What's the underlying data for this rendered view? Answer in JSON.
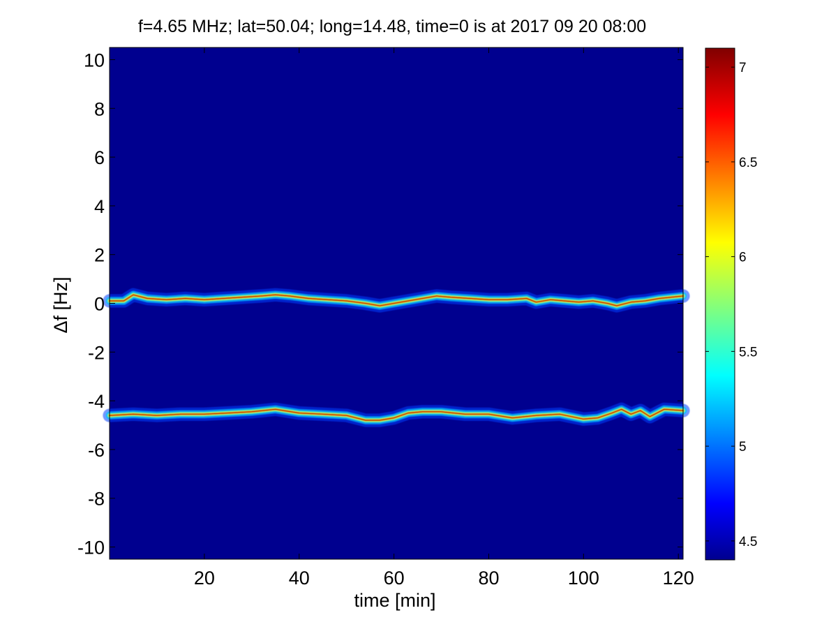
{
  "chart_data": {
    "type": "heatmap",
    "title": "f=4.65 MHz;  lat=50.04; long=14.48, time=0 is at 2017 09 20 08:00",
    "xlabel": "time [min]",
    "ylabel": "Δf [Hz]",
    "xlim": [
      0,
      121
    ],
    "ylim": [
      -10.5,
      10.5
    ],
    "x_ticks": [
      20,
      40,
      60,
      80,
      100,
      120
    ],
    "y_ticks": [
      10,
      8,
      6,
      4,
      2,
      0,
      -2,
      -4,
      -6,
      -8,
      -10
    ],
    "colorbar": {
      "range": [
        4.4,
        7.1
      ],
      "ticks": [
        7,
        6.5,
        6,
        5.5,
        5,
        4.5
      ],
      "colormap": "jet"
    },
    "background_value": 4.4,
    "series": [
      {
        "time": [
          0,
          3,
          5,
          8,
          12,
          16,
          20,
          24,
          28,
          32,
          35,
          38,
          42,
          46,
          50,
          54,
          57,
          60,
          63,
          66,
          69,
          72,
          76,
          80,
          84,
          88,
          90,
          93,
          96,
          99,
          102,
          105,
          107,
          110,
          113,
          116,
          121
        ],
        "delta_f": [
          0.1,
          0.1,
          0.35,
          0.2,
          0.15,
          0.2,
          0.15,
          0.2,
          0.25,
          0.3,
          0.35,
          0.3,
          0.2,
          0.15,
          0.1,
          0.0,
          -0.1,
          0.0,
          0.1,
          0.2,
          0.3,
          0.25,
          0.2,
          0.15,
          0.15,
          0.2,
          0.05,
          0.15,
          0.1,
          0.05,
          0.1,
          0.0,
          -0.1,
          0.05,
          0.1,
          0.2,
          0.3
        ],
        "peak_value": 7.1
      },
      {
        "time": [
          0,
          5,
          10,
          15,
          20,
          25,
          30,
          35,
          40,
          45,
          50,
          54,
          57,
          60,
          63,
          66,
          70,
          75,
          80,
          85,
          90,
          95,
          100,
          103,
          106,
          108,
          110,
          112,
          114,
          117,
          121
        ],
        "delta_f": [
          -4.6,
          -4.55,
          -4.6,
          -4.55,
          -4.55,
          -4.5,
          -4.45,
          -4.35,
          -4.5,
          -4.55,
          -4.6,
          -4.8,
          -4.8,
          -4.7,
          -4.5,
          -4.45,
          -4.45,
          -4.55,
          -4.55,
          -4.7,
          -4.6,
          -4.55,
          -4.75,
          -4.7,
          -4.5,
          -4.35,
          -4.55,
          -4.4,
          -4.65,
          -4.35,
          -4.4
        ],
        "peak_value": 7.1
      }
    ]
  }
}
